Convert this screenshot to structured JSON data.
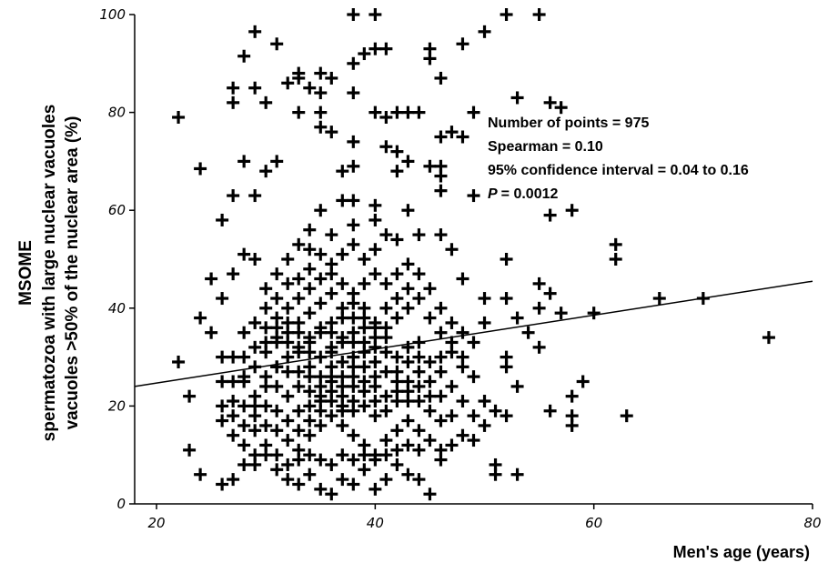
{
  "chart_data": {
    "type": "scatter",
    "marker": "plus",
    "xlabel": "Men's age (years)",
    "ylabel_lines": [
      "MSOME",
      "spermatozoa with large nuclear vacuoles",
      "vacuoles >50% of the nuclear area  (%)"
    ],
    "xlim": [
      18,
      80
    ],
    "ylim": [
      0,
      100
    ],
    "x_ticks": [
      20,
      40,
      60,
      80
    ],
    "y_ticks": [
      0,
      20,
      40,
      60,
      80,
      100
    ],
    "grid": false,
    "annotations": [
      "Number of points = 975",
      "Spearman =  0.10",
      "95% confidence interval = 0.04 to 0.16",
      "= 0.0012"
    ],
    "p_symbol": "P",
    "regression_line": {
      "x": [
        18,
        80
      ],
      "y": [
        24.0,
        45.5
      ]
    },
    "points": [
      [
        22,
        79
      ],
      [
        24,
        68.5
      ],
      [
        26,
        58
      ],
      [
        27,
        85
      ],
      [
        27,
        82
      ],
      [
        28,
        91.5
      ],
      [
        28,
        70
      ],
      [
        29,
        96.5
      ],
      [
        29,
        85
      ],
      [
        30,
        82
      ],
      [
        31,
        94
      ],
      [
        29,
        63
      ],
      [
        27,
        63
      ],
      [
        31,
        70
      ],
      [
        30,
        68
      ],
      [
        32,
        86
      ],
      [
        33,
        87
      ],
      [
        33,
        88
      ],
      [
        34,
        85
      ],
      [
        35,
        88
      ],
      [
        36,
        87
      ],
      [
        35,
        84
      ],
      [
        35,
        80
      ],
      [
        33,
        80
      ],
      [
        35,
        77
      ],
      [
        36,
        76
      ],
      [
        38,
        100
      ],
      [
        40,
        100
      ],
      [
        39,
        92
      ],
      [
        38,
        90
      ],
      [
        40,
        93
      ],
      [
        41,
        93
      ],
      [
        38,
        84
      ],
      [
        40,
        80
      ],
      [
        41,
        79
      ],
      [
        43,
        80
      ],
      [
        42,
        80
      ],
      [
        44,
        80
      ],
      [
        45,
        93
      ],
      [
        45,
        91
      ],
      [
        48,
        94
      ],
      [
        49,
        80
      ],
      [
        50,
        96.5
      ],
      [
        52,
        100
      ],
      [
        55,
        100
      ],
      [
        53,
        83
      ],
      [
        56,
        82
      ],
      [
        57,
        81
      ],
      [
        47,
        76
      ],
      [
        46,
        75
      ],
      [
        48,
        75
      ],
      [
        46,
        87
      ],
      [
        41,
        73
      ],
      [
        42,
        72
      ],
      [
        43,
        70
      ],
      [
        42,
        68
      ],
      [
        38,
        74
      ],
      [
        37,
        68
      ],
      [
        38,
        69
      ],
      [
        37,
        62
      ],
      [
        38,
        62
      ],
      [
        40,
        61
      ],
      [
        35,
        60
      ],
      [
        34,
        56
      ],
      [
        36,
        55
      ],
      [
        38,
        57
      ],
      [
        40,
        58
      ],
      [
        43,
        60
      ],
      [
        44,
        55
      ],
      [
        46,
        55
      ],
      [
        47,
        52
      ],
      [
        45,
        69
      ],
      [
        46,
        69
      ],
      [
        46,
        64
      ],
      [
        49,
        63
      ],
      [
        46,
        67
      ],
      [
        56,
        59
      ],
      [
        58,
        60
      ],
      [
        52,
        50
      ],
      [
        62,
        53
      ],
      [
        62,
        50
      ],
      [
        66,
        42
      ],
      [
        70,
        42
      ],
      [
        76,
        34
      ],
      [
        60,
        39
      ],
      [
        57,
        39
      ],
      [
        56,
        43
      ],
      [
        55,
        40
      ],
      [
        52,
        42
      ],
      [
        50,
        42
      ],
      [
        48,
        46
      ],
      [
        42,
        54
      ],
      [
        41,
        55
      ],
      [
        40,
        52
      ],
      [
        39,
        50
      ],
      [
        38,
        53
      ],
      [
        37,
        51
      ],
      [
        36,
        49
      ],
      [
        35,
        51
      ],
      [
        34,
        48
      ],
      [
        33,
        46
      ],
      [
        32,
        45
      ],
      [
        31,
        47
      ],
      [
        30,
        44
      ],
      [
        29,
        50
      ],
      [
        28,
        51
      ],
      [
        27,
        47
      ],
      [
        26,
        42
      ],
      [
        25,
        46
      ],
      [
        26,
        30
      ],
      [
        25,
        35
      ],
      [
        24,
        38
      ],
      [
        23,
        22
      ],
      [
        22,
        29
      ],
      [
        23,
        11
      ],
      [
        24,
        6
      ],
      [
        26,
        4
      ],
      [
        27,
        5
      ],
      [
        28,
        8
      ],
      [
        29,
        10
      ],
      [
        30,
        12
      ],
      [
        31,
        7
      ],
      [
        32,
        5
      ],
      [
        33,
        4
      ],
      [
        34,
        6
      ],
      [
        35,
        3
      ],
      [
        36,
        2
      ],
      [
        37,
        5
      ],
      [
        38,
        4
      ],
      [
        39,
        7
      ],
      [
        40,
        3
      ],
      [
        41,
        5
      ],
      [
        42,
        8
      ],
      [
        43,
        6
      ],
      [
        44,
        5
      ],
      [
        45,
        2
      ],
      [
        46,
        9
      ],
      [
        47,
        12
      ],
      [
        48,
        14
      ],
      [
        49,
        18
      ],
      [
        50,
        16
      ],
      [
        51,
        8
      ],
      [
        51,
        6
      ],
      [
        53,
        6
      ],
      [
        52,
        18
      ],
      [
        53,
        24
      ],
      [
        54,
        35
      ],
      [
        55,
        32
      ],
      [
        56,
        19
      ],
      [
        58,
        18
      ],
      [
        58,
        16
      ],
      [
        58,
        22
      ],
      [
        59,
        25
      ],
      [
        63,
        18
      ],
      [
        51,
        19
      ],
      [
        52,
        30
      ],
      [
        50,
        37
      ],
      [
        49,
        33
      ],
      [
        48,
        28
      ],
      [
        47,
        31
      ],
      [
        46,
        35
      ],
      [
        45,
        38
      ],
      [
        44,
        33
      ],
      [
        43,
        29
      ],
      [
        42,
        27
      ],
      [
        41,
        31
      ],
      [
        40,
        26
      ],
      [
        39,
        28
      ],
      [
        38,
        24
      ],
      [
        37,
        22
      ],
      [
        36,
        25
      ],
      [
        35,
        21
      ],
      [
        34,
        23
      ],
      [
        33,
        19
      ],
      [
        32,
        22
      ],
      [
        31,
        24
      ],
      [
        30,
        20
      ],
      [
        29,
        18
      ],
      [
        28,
        16
      ],
      [
        27,
        14
      ],
      [
        26,
        17
      ],
      [
        27,
        21
      ],
      [
        28,
        25
      ],
      [
        29,
        28
      ],
      [
        30,
        31
      ],
      [
        31,
        33
      ],
      [
        32,
        35
      ],
      [
        33,
        37
      ],
      [
        34,
        39
      ],
      [
        35,
        41
      ],
      [
        36,
        43
      ],
      [
        37,
        40
      ],
      [
        38,
        38
      ],
      [
        39,
        36
      ],
      [
        40,
        34
      ],
      [
        41,
        36
      ],
      [
        42,
        38
      ],
      [
        43,
        40
      ],
      [
        44,
        42
      ],
      [
        45,
        44
      ],
      [
        46,
        40
      ],
      [
        47,
        37
      ],
      [
        48,
        35
      ],
      [
        30,
        26
      ],
      [
        31,
        28
      ],
      [
        32,
        30
      ],
      [
        33,
        32
      ],
      [
        34,
        34
      ],
      [
        35,
        36
      ],
      [
        36,
        31
      ],
      [
        37,
        29
      ],
      [
        38,
        33
      ],
      [
        39,
        31
      ],
      [
        40,
        29
      ],
      [
        41,
        27
      ],
      [
        42,
        25
      ],
      [
        43,
        23
      ],
      [
        44,
        21
      ],
      [
        45,
        19
      ],
      [
        46,
        22
      ],
      [
        47,
        24
      ],
      [
        48,
        21
      ],
      [
        49,
        13
      ],
      [
        31,
        15
      ],
      [
        32,
        13
      ],
      [
        33,
        11
      ],
      [
        34,
        14
      ],
      [
        35,
        16
      ],
      [
        36,
        18
      ],
      [
        37,
        16
      ],
      [
        38,
        14
      ],
      [
        39,
        12
      ],
      [
        40,
        10
      ],
      [
        41,
        13
      ],
      [
        42,
        15
      ],
      [
        43,
        17
      ],
      [
        44,
        15
      ],
      [
        45,
        13
      ],
      [
        46,
        11
      ],
      [
        29,
        22
      ],
      [
        30,
        24
      ],
      [
        31,
        19
      ],
      [
        32,
        17
      ],
      [
        33,
        15
      ],
      [
        34,
        17
      ],
      [
        35,
        19
      ],
      [
        36,
        21
      ],
      [
        37,
        19
      ],
      [
        38,
        21
      ],
      [
        39,
        23
      ],
      [
        40,
        21
      ],
      [
        41,
        19
      ],
      [
        42,
        21
      ],
      [
        43,
        25
      ],
      [
        44,
        27
      ],
      [
        45,
        25
      ],
      [
        46,
        27
      ],
      [
        47,
        18
      ],
      [
        28,
        30
      ],
      [
        29,
        32
      ],
      [
        30,
        36
      ],
      [
        31,
        38
      ],
      [
        32,
        40
      ],
      [
        33,
        42
      ],
      [
        34,
        44
      ],
      [
        35,
        46
      ],
      [
        36,
        47
      ],
      [
        37,
        45
      ],
      [
        38,
        43
      ],
      [
        39,
        45
      ],
      [
        40,
        47
      ],
      [
        41,
        45
      ],
      [
        42,
        47
      ],
      [
        43,
        49
      ],
      [
        44,
        47
      ],
      [
        27,
        25
      ],
      [
        28,
        20
      ],
      [
        29,
        15
      ],
      [
        30,
        10
      ],
      [
        31,
        10
      ],
      [
        32,
        8
      ],
      [
        33,
        9
      ],
      [
        34,
        10
      ],
      [
        35,
        9
      ],
      [
        36,
        8
      ],
      [
        37,
        10
      ],
      [
        38,
        9
      ],
      [
        39,
        10
      ],
      [
        40,
        9
      ],
      [
        41,
        10
      ],
      [
        42,
        11
      ],
      [
        43,
        12
      ],
      [
        44,
        11
      ],
      [
        34,
        28
      ],
      [
        35,
        26
      ],
      [
        36,
        28
      ],
      [
        37,
        26
      ],
      [
        38,
        28
      ],
      [
        36,
        35
      ],
      [
        37,
        33
      ],
      [
        38,
        35
      ],
      [
        39,
        38
      ],
      [
        40,
        37
      ],
      [
        41,
        40
      ],
      [
        42,
        42
      ],
      [
        43,
        44
      ],
      [
        35,
        30
      ],
      [
        36,
        32
      ],
      [
        37,
        34
      ],
      [
        38,
        30
      ],
      [
        39,
        33
      ],
      [
        40,
        32
      ],
      [
        33,
        24
      ],
      [
        34,
        26
      ],
      [
        35,
        24
      ],
      [
        36,
        26
      ],
      [
        37,
        24
      ],
      [
        38,
        26
      ],
      [
        39,
        25
      ],
      [
        40,
        24
      ],
      [
        32,
        27
      ],
      [
        33,
        27
      ],
      [
        34,
        20
      ],
      [
        35,
        22
      ],
      [
        36,
        23
      ],
      [
        37,
        20
      ],
      [
        38,
        19
      ],
      [
        39,
        20
      ],
      [
        40,
        18
      ],
      [
        41,
        22
      ],
      [
        42,
        23
      ],
      [
        43,
        21
      ],
      [
        44,
        24
      ],
      [
        45,
        22
      ],
      [
        46,
        17
      ],
      [
        30,
        40
      ],
      [
        31,
        42
      ],
      [
        32,
        50
      ],
      [
        33,
        53
      ],
      [
        34,
        52
      ],
      [
        31,
        34
      ],
      [
        32,
        33
      ],
      [
        33,
        31
      ],
      [
        34,
        31
      ],
      [
        31,
        28
      ],
      [
        30,
        16
      ],
      [
        29,
        20
      ],
      [
        28,
        26
      ],
      [
        27,
        30
      ],
      [
        28,
        35
      ],
      [
        29,
        37
      ],
      [
        30,
        33
      ],
      [
        26,
        20
      ],
      [
        26,
        25
      ],
      [
        27,
        18
      ],
      [
        28,
        12
      ],
      [
        29,
        8
      ],
      [
        55,
        45
      ],
      [
        53,
        38
      ],
      [
        52,
        28
      ],
      [
        50,
        21
      ],
      [
        49,
        26
      ],
      [
        48,
        30
      ],
      [
        47,
        33
      ],
      [
        46,
        30
      ],
      [
        45,
        29
      ],
      [
        44,
        30
      ],
      [
        43,
        32
      ],
      [
        42,
        30
      ],
      [
        41,
        34
      ],
      [
        40,
        36
      ],
      [
        39,
        40
      ],
      [
        38,
        41
      ],
      [
        37,
        38
      ],
      [
        36,
        37
      ],
      [
        35,
        35
      ],
      [
        34,
        33
      ],
      [
        33,
        35
      ],
      [
        32,
        37
      ],
      [
        31,
        36
      ]
    ]
  }
}
